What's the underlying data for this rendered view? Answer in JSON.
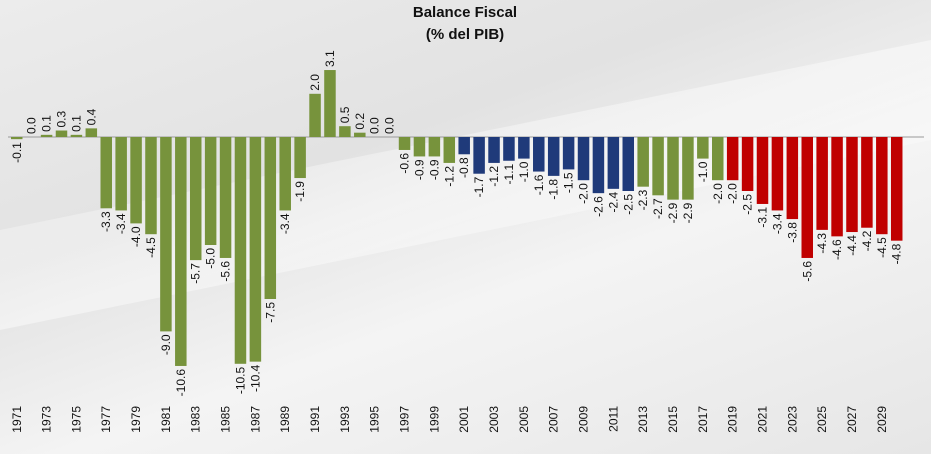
{
  "chart_data": {
    "type": "bar",
    "title": "Balance Fiscal",
    "subtitle": "(% del PIB)",
    "xlabel": "",
    "ylabel": "",
    "ylim": [
      -11,
      4
    ],
    "grid": false,
    "legend": "none",
    "colors": {
      "green": "#77933c",
      "blue": "#1f3a7a",
      "red": "#c00000"
    },
    "x": [
      1971,
      1972,
      1973,
      1974,
      1975,
      1976,
      1977,
      1978,
      1979,
      1980,
      1981,
      1982,
      1983,
      1984,
      1985,
      1986,
      1987,
      1988,
      1989,
      1990,
      1991,
      1992,
      1993,
      1994,
      1995,
      1996,
      1997,
      1998,
      1999,
      2000,
      2001,
      2002,
      2003,
      2004,
      2005,
      2006,
      2007,
      2008,
      2009,
      2010,
      2011,
      2012,
      2013,
      2014,
      2015,
      2016,
      2017,
      2018,
      2019,
      2020,
      2021,
      2022,
      2023,
      2024,
      2025,
      2026,
      2027,
      2028,
      2029,
      2030
    ],
    "values": [
      -0.1,
      0.0,
      0.1,
      0.3,
      0.1,
      0.4,
      -3.3,
      -3.4,
      -4.0,
      -4.5,
      -9.0,
      -10.6,
      -5.7,
      -5.0,
      -5.6,
      -10.5,
      -10.4,
      -7.5,
      -3.4,
      -1.9,
      2.0,
      3.1,
      0.5,
      0.2,
      0.0,
      0.0,
      -0.6,
      -0.9,
      -0.9,
      -1.2,
      -0.8,
      -1.7,
      -1.2,
      -1.1,
      -1.0,
      -1.6,
      -1.8,
      -1.5,
      -2.0,
      -2.6,
      -2.4,
      -2.5,
      -2.3,
      -2.7,
      -2.9,
      -2.9,
      -1.0,
      -2.0,
      -2.0,
      -2.5,
      -3.1,
      -3.4,
      -3.8,
      -5.6,
      -4.3,
      -4.6,
      -4.4,
      -4.2,
      -4.5,
      -4.8
    ],
    "labels": [
      "-0.1",
      "0.0",
      "0.1",
      "0.3",
      "0.1",
      "0.4",
      "-3.3",
      "-3.4",
      "-4.0",
      "-4.5",
      "-9.0",
      "-10.6",
      "-5.7",
      "-5.0",
      "-5.6",
      "-10.5",
      "-10.4",
      "-7.5",
      "-3.4",
      "-1.9",
      "2.0",
      "3.1",
      "0.5",
      "0.2",
      "0.0",
      "0.0",
      "-0.6",
      "-0.9",
      "-0.9",
      "-1.2",
      "-0.8",
      "-1.7",
      "-1.2",
      "-1.1",
      "-1.0",
      "-1.6",
      "-1.8",
      "-1.5",
      "-2.0",
      "-2.6",
      "-2.4",
      "-2.5",
      "-2.3",
      "-2.7",
      "-2.9",
      "-2.9",
      "-1.0",
      "-2.0",
      "-2.0",
      "-2.5",
      "-3.1",
      "-3.4",
      "-3.8",
      "-5.6",
      "-4.3",
      "-4.6",
      "-4.4",
      "-4.2",
      "-4.5",
      "-4.8"
    ],
    "bar_colors": [
      "green",
      "green",
      "green",
      "green",
      "green",
      "green",
      "green",
      "green",
      "green",
      "green",
      "green",
      "green",
      "green",
      "green",
      "green",
      "green",
      "green",
      "green",
      "green",
      "green",
      "green",
      "green",
      "green",
      "green",
      "green",
      "green",
      "green",
      "green",
      "green",
      "green",
      "blue",
      "blue",
      "blue",
      "blue",
      "blue",
      "blue",
      "blue",
      "blue",
      "blue",
      "blue",
      "blue",
      "blue",
      "green",
      "green",
      "green",
      "green",
      "green",
      "green",
      "red",
      "red",
      "red",
      "red",
      "red",
      "red",
      "red",
      "red",
      "red",
      "red",
      "red",
      "red"
    ],
    "tick_labels": [
      "1971",
      "1973",
      "1975",
      "1977",
      "1979",
      "1981",
      "1983",
      "1985",
      "1987",
      "1989",
      "1991",
      "1993",
      "1995",
      "1997",
      "1999",
      "2001",
      "2003",
      "2005",
      "2007",
      "2009",
      "2011",
      "2013",
      "2015",
      "2017",
      "2019",
      "2021",
      "2023",
      "2025",
      "2027",
      "2029"
    ]
  }
}
